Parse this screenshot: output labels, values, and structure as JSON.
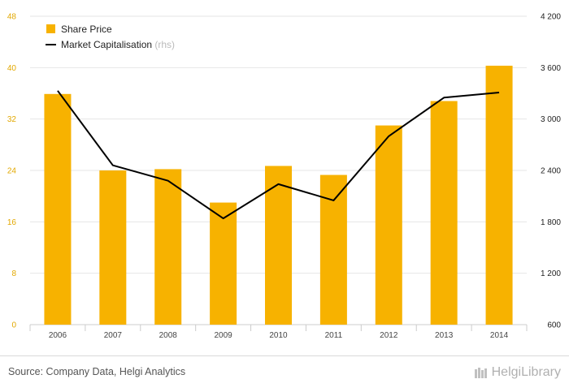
{
  "chart_data": {
    "type": "bar",
    "categories": [
      "2006",
      "2007",
      "2008",
      "2009",
      "2010",
      "2011",
      "2012",
      "2013",
      "2014"
    ],
    "series": [
      {
        "name": "Share Price",
        "type": "bar",
        "axis": "left",
        "color": "#f7b200",
        "values": [
          35.9,
          24.0,
          24.2,
          19.0,
          24.7,
          23.3,
          31.0,
          34.8,
          40.3
        ]
      },
      {
        "name": "Market Capitalisation",
        "name_suffix": "(rhs)",
        "type": "line",
        "axis": "right",
        "color": "#000000",
        "values": [
          3330,
          2460,
          2280,
          1840,
          2240,
          2050,
          2800,
          3250,
          3310
        ]
      }
    ],
    "y_left": {
      "ylim": [
        0,
        48
      ],
      "ticks": [
        0,
        8,
        16,
        24,
        32,
        40,
        48
      ],
      "tick_labels": [
        "0",
        "8",
        "16",
        "24",
        "32",
        "40",
        "48"
      ],
      "color": "#e2a800"
    },
    "y_right": {
      "ylim": [
        600,
        4200
      ],
      "ticks": [
        600,
        1200,
        1800,
        2400,
        3000,
        3600,
        4200
      ],
      "tick_labels": [
        "600",
        "1 200",
        "1 800",
        "2 400",
        "3 000",
        "3 600",
        "4 200"
      ],
      "color": "#222222"
    },
    "grid": true,
    "legend_position": "top-left"
  },
  "footer": {
    "source": "Source: Company Data, Helgi Analytics",
    "brand": "HelgiLibrary"
  }
}
